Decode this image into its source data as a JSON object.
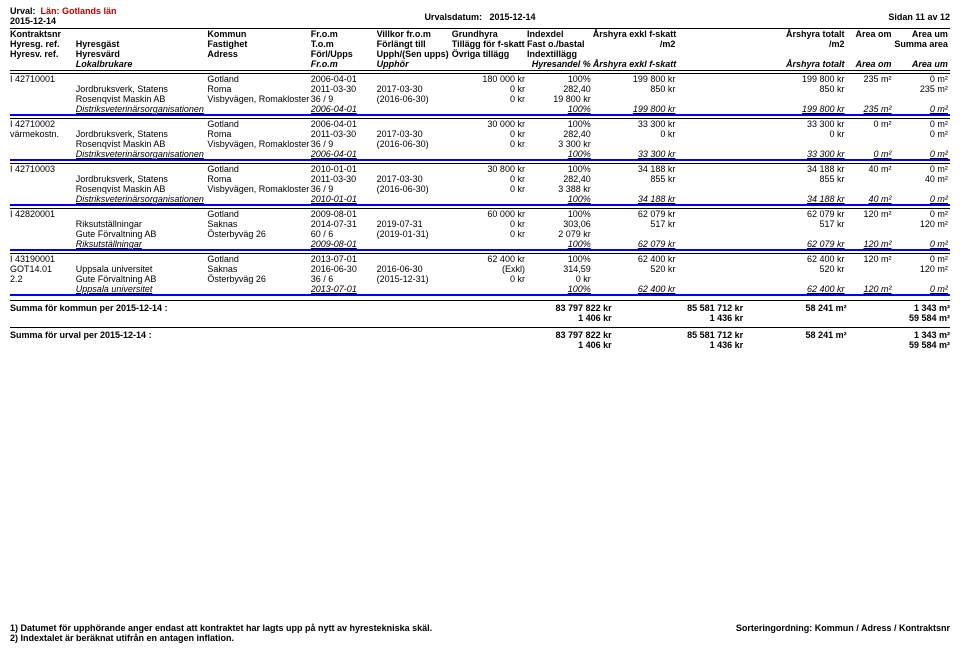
{
  "page": {
    "urval_label": "Urval:",
    "lan": "Län: Gotlands län",
    "date_left": "2015-12-14",
    "urvalsdatum_label": "Urvalsdatum:",
    "urvalsdatum_value": "2015-12-14",
    "page_label": "Sidan 11 av 12"
  },
  "colhead": {
    "r1": [
      "Kontraktsnr",
      "",
      "Kommun",
      "Fr.o.m",
      "Villkor fr.o.m",
      "Grundhyra",
      "Indexdel",
      "Årshyra exkl f-skatt",
      "",
      "Årshyra totalt",
      "Area om",
      "Area um"
    ],
    "r2": [
      "Hyresg. ref.",
      "Hyresgäst",
      "Fastighet",
      "T.o.m",
      "Förlängt till",
      "Tillägg för f-skatt",
      "Fast o./bastal",
      "/m2",
      "",
      "/m2",
      "",
      "Summa area"
    ],
    "r3": [
      "Hyresv. ref.",
      "Hyresvärd",
      "Adress",
      "Förl/Upps",
      "Upph/(Sen upps)",
      "Övriga tillägg",
      "Indextillägg",
      "",
      "",
      "",
      "",
      ""
    ],
    "r4": [
      "",
      "Lokalbrukare",
      "",
      "Fr.o.m",
      "Upphör",
      "",
      "Hyresandel %",
      "Årshyra exkl f-skatt",
      "",
      "Årshyra totalt",
      "Area om",
      "Area um"
    ]
  },
  "contracts": [
    {
      "id": "I 42710001",
      "rows": [
        [
          "I 42710001",
          "",
          "Gotland",
          "2006-04-01",
          "",
          "180 000 kr",
          "100%",
          "199 800 kr",
          "",
          "199 800 kr",
          "235 m²",
          "0 m²"
        ],
        [
          "",
          "Jordbruksverk, Statens",
          "Roma",
          "2011-03-30",
          "2017-03-30",
          "0 kr",
          "282,40",
          "850 kr",
          "",
          "850 kr",
          "",
          "235 m²"
        ],
        [
          "",
          "Rosenqvist Maskin AB",
          "Visbyvägen, Romakloster",
          "36 / 9",
          "(2016-06-30)",
          "0 kr",
          "19 800 kr",
          "",
          "",
          "",
          "",
          ""
        ]
      ],
      "sum": [
        "",
        "Distriksveterinärsorganisationen",
        "",
        "2006-04-01",
        "",
        "",
        "100%",
        "199 800 kr",
        "",
        "199 800 kr",
        "235 m²",
        "0 m²"
      ]
    },
    {
      "id": "I 42710002",
      "rows": [
        [
          "I 42710002",
          "",
          "Gotland",
          "2006-04-01",
          "",
          "30 000 kr",
          "100%",
          "33 300 kr",
          "",
          "33 300 kr",
          "0 m²",
          "0 m²"
        ],
        [
          "värmekostn.",
          "Jordbruksverk, Statens",
          "Roma",
          "2011-03-30",
          "2017-03-30",
          "0 kr",
          "282,40",
          "0 kr",
          "",
          "0 kr",
          "",
          "0 m²"
        ],
        [
          "",
          "Rosenqvist Maskin AB",
          "Visbyvägen, Romakloster",
          "36 / 9",
          "(2016-06-30)",
          "0 kr",
          "3 300 kr",
          "",
          "",
          "",
          "",
          ""
        ]
      ],
      "sum": [
        "",
        "Distriksveterinärsorganisationen",
        "",
        "2006-04-01",
        "",
        "",
        "100%",
        "33 300 kr",
        "",
        "33 300 kr",
        "0 m²",
        "0 m²"
      ]
    },
    {
      "id": "I 42710003",
      "rows": [
        [
          "I 42710003",
          "",
          "Gotland",
          "2010-01-01",
          "",
          "30 800 kr",
          "100%",
          "34 188 kr",
          "",
          "34 188 kr",
          "40 m²",
          "0 m²"
        ],
        [
          "",
          "Jordbruksverk, Statens",
          "Roma",
          "2011-03-30",
          "2017-03-30",
          "0 kr",
          "282,40",
          "855 kr",
          "",
          "855 kr",
          "",
          "40 m²"
        ],
        [
          "",
          "Rosenqvist Maskin AB",
          "Visbyvägen, Romakloster",
          "36 / 9",
          "(2016-06-30)",
          "0 kr",
          "3 388 kr",
          "",
          "",
          "",
          "",
          ""
        ]
      ],
      "sum": [
        "",
        "Distriksveterinärsorganisationen",
        "",
        "2010-01-01",
        "",
        "",
        "100%",
        "34 188 kr",
        "",
        "34 188 kr",
        "40 m²",
        "0 m²"
      ]
    },
    {
      "id": "I 42820001",
      "rows": [
        [
          "I 42820001",
          "",
          "Gotland",
          "2009-08-01",
          "",
          "60 000 kr",
          "100%",
          "62 079 kr",
          "",
          "62 079 kr",
          "120 m²",
          "0 m²"
        ],
        [
          "",
          "Riksutställningar",
          "Saknas",
          "2014-07-31",
          "2019-07-31",
          "0 kr",
          "303,06",
          "517 kr",
          "",
          "517 kr",
          "",
          "120 m²"
        ],
        [
          "",
          "Gute Förvaltning AB",
          "Österbyväg 26",
          "60 / 6",
          "(2019-01-31)",
          "0 kr",
          "2 079 kr",
          "",
          "",
          "",
          "",
          ""
        ]
      ],
      "sum": [
        "",
        "Riksutställningar",
        "",
        "2009-08-01",
        "",
        "",
        "100%",
        "62 079 kr",
        "",
        "62 079 kr",
        "120 m²",
        "0 m²"
      ]
    },
    {
      "id": "I 43190001",
      "rows": [
        [
          "I 43190001",
          "",
          "Gotland",
          "2013-07-01",
          "",
          "62 400 kr",
          "100%",
          "62 400 kr",
          "",
          "62 400 kr",
          "120 m²",
          "0 m²"
        ],
        [
          "GOT14.01",
          "Uppsala universitet",
          "Saknas",
          "2016-06-30",
          "2016-06-30",
          "(Exkl)",
          "314,59",
          "520 kr",
          "",
          "520 kr",
          "",
          "120 m²"
        ],
        [
          "2.2",
          "Gute Förvaltning AB",
          "Österbyväg 26",
          "36 / 6",
          "(2015-12-31)",
          "0 kr",
          "0 kr",
          "",
          "",
          "",
          "",
          ""
        ]
      ],
      "sum": [
        "",
        "Uppsala universitet",
        "",
        "2013-07-01",
        "",
        "",
        "100%",
        "62 400 kr",
        "",
        "62 400 kr",
        "120 m²",
        "0 m²"
      ]
    }
  ],
  "summaries": [
    {
      "label": "Summa för kommun per 2015-12-14 :",
      "v": [
        "83 797 822 kr",
        "85 581 712 kr",
        "58 241 m²",
        "1 343 m²"
      ],
      "sub": [
        "1 406 kr",
        "1 436 kr",
        "",
        "59 584 m²"
      ]
    },
    {
      "label": "Summa för urval per 2015-12-14 :",
      "v": [
        "83 797 822 kr",
        "85 581 712 kr",
        "58 241 m²",
        "1 343 m²"
      ],
      "sub": [
        "1 406 kr",
        "1 436 kr",
        "",
        "59 584 m²"
      ]
    }
  ],
  "footer": {
    "l1": "1) Datumet för upphörande anger endast att kontraktet har lagts upp på nytt av hyrestekniska skäl.",
    "l2": "2) Indextalet är beräknat utifrån en antagen inflation.",
    "r": "Sorteringordning: Kommun / Adress / Kontraktsnr"
  }
}
